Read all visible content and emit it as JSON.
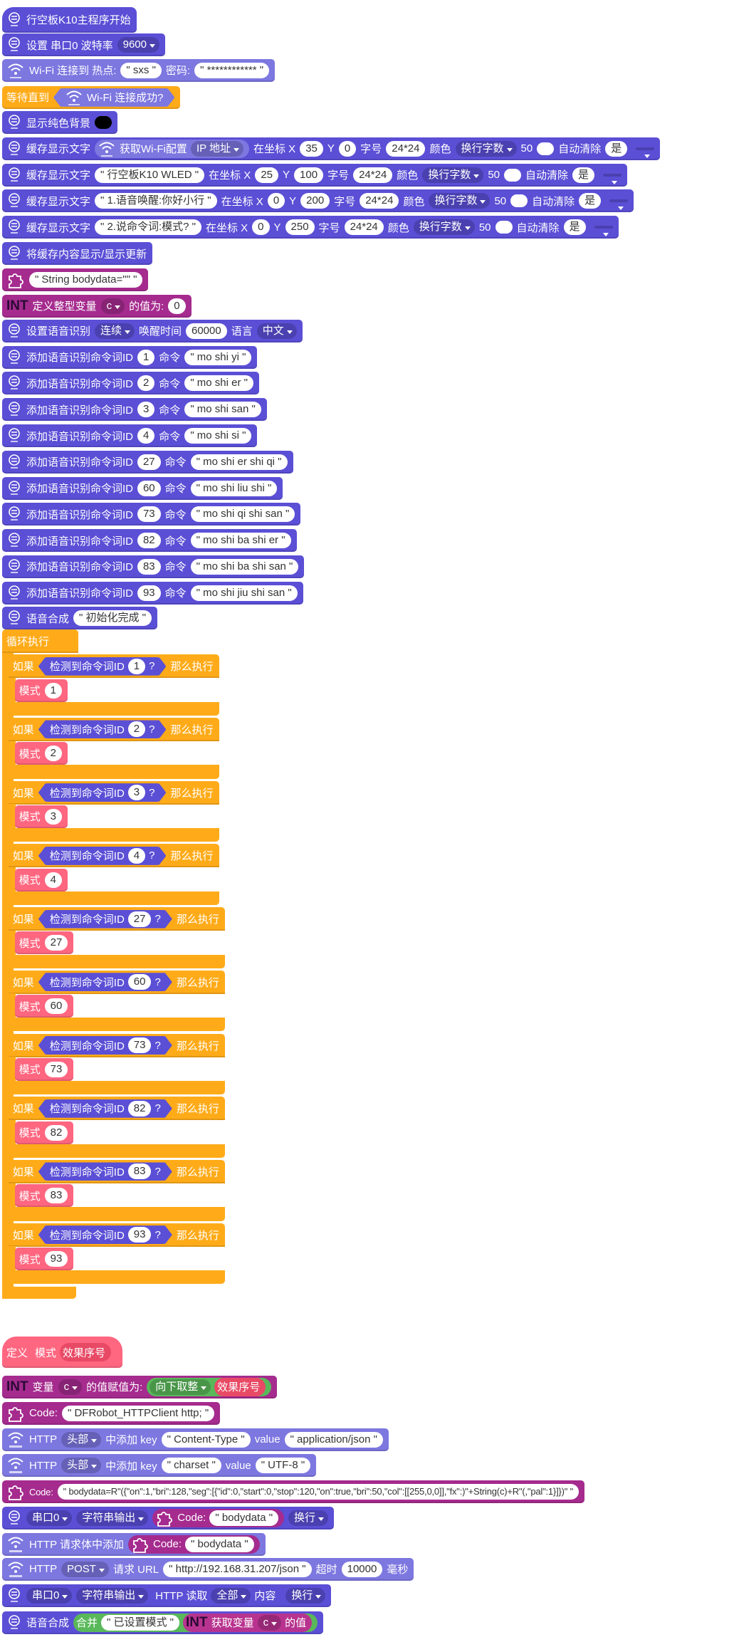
{
  "blocks": [
    {
      "parts": [
        "行空板K10主程序开始"
      ]
    },
    {
      "parts": [
        "设置 串口0 波特率",
        "9600"
      ]
    },
    {
      "parts": [
        "Wi-Fi 连接到 热点:",
        "\" sxs \"",
        "密码:",
        "\" ************ \""
      ]
    },
    {
      "parts": [
        "等待直到",
        "Wi-Fi 连接成功?"
      ]
    },
    {
      "parts": [
        "显示纯色背景"
      ]
    },
    {
      "parts": [
        "缓存显示文字",
        "获取Wi-Fi配置",
        "IP 地址",
        "在坐标 X",
        35,
        "Y",
        0,
        "字号",
        "24*24",
        "颜色",
        "换行字数",
        50,
        "自动清除",
        "是"
      ]
    },
    {
      "parts": [
        "缓存显示文字",
        "\" 行空板K10 WLED \"",
        "在坐标 X",
        25,
        "Y",
        100,
        "字号",
        "24*24",
        "颜色",
        "换行字数",
        50,
        "自动清除",
        "是"
      ]
    },
    {
      "parts": [
        "缓存显示文字",
        "\" 1.语音唤醒:你好小行 \"",
        "在坐标 X",
        0,
        "Y",
        200,
        "字号",
        "24*24",
        "颜色",
        "换行字数",
        50,
        "自动清除",
        "是"
      ]
    },
    {
      "parts": [
        "缓存显示文字",
        "\" 2.说命令词:模式? \"",
        "在坐标 X",
        0,
        "Y",
        250,
        "字号",
        "24*24",
        "颜色",
        "换行字数",
        50,
        "自动清除",
        "是"
      ]
    },
    {
      "parts": [
        "将缓存内容显示/显示更新"
      ]
    },
    {
      "parts": [
        "\" String bodydata=\"\" \""
      ]
    },
    {
      "parts": [
        "INT",
        "定义整型变量",
        "c",
        "的值为:",
        0
      ]
    },
    {
      "parts": [
        "设置语音识别",
        "连续",
        "唤醒时间",
        60000,
        "语言",
        "中文"
      ]
    },
    {
      "parts": [
        "添加语音识别命令词ID",
        1,
        "命令",
        "\" mo shi yi \""
      ]
    },
    {
      "parts": [
        "添加语音识别命令词ID",
        2,
        "命令",
        "\" mo shi er \""
      ]
    },
    {
      "parts": [
        "添加语音识别命令词ID",
        3,
        "命令",
        "\" mo shi san \""
      ]
    },
    {
      "parts": [
        "添加语音识别命令词ID",
        4,
        "命令",
        "\" mo shi si \""
      ]
    },
    {
      "parts": [
        "添加语音识别命令词ID",
        27,
        "命令",
        "\" mo shi er shi qi \""
      ]
    },
    {
      "parts": [
        "添加语音识别命令词ID",
        60,
        "命令",
        "\" mo shi liu shi \""
      ]
    },
    {
      "parts": [
        "添加语音识别命令词ID",
        73,
        "命令",
        "\" mo shi qi shi san \""
      ]
    },
    {
      "parts": [
        "添加语音识别命令词ID",
        82,
        "命令",
        "\" mo shi ba shi er \""
      ]
    },
    {
      "parts": [
        "添加语音识别命令词ID",
        83,
        "命令",
        "\" mo shi ba shi san \""
      ]
    },
    {
      "parts": [
        "添加语音识别命令词ID",
        93,
        "命令",
        "\" mo shi jiu shi san \""
      ]
    },
    {
      "parts": [
        "语音合成",
        "\" 初始化完成 \""
      ]
    }
  ],
  "loop": {
    "label": "循环执行",
    "branches": [
      {
        "if": [
          "如果",
          "检测到命令词ID",
          1,
          "?",
          "那么执行"
        ],
        "do": [
          "模式",
          1
        ]
      },
      {
        "if": [
          "如果",
          "检测到命令词ID",
          2,
          "?",
          "那么执行"
        ],
        "do": [
          "模式",
          2
        ]
      },
      {
        "if": [
          "如果",
          "检测到命令词ID",
          3,
          "?",
          "那么执行"
        ],
        "do": [
          "模式",
          3
        ]
      },
      {
        "if": [
          "如果",
          "检测到命令词ID",
          4,
          "?",
          "那么执行"
        ],
        "do": [
          "模式",
          4
        ]
      },
      {
        "if": [
          "如果",
          "检测到命令词ID",
          27,
          "?",
          "那么执行"
        ],
        "do": [
          "模式",
          27
        ]
      },
      {
        "if": [
          "如果",
          "检测到命令词ID",
          60,
          "?",
          "那么执行"
        ],
        "do": [
          "模式",
          60
        ]
      },
      {
        "if": [
          "如果",
          "检测到命令词ID",
          73,
          "?",
          "那么执行"
        ],
        "do": [
          "模式",
          73
        ]
      },
      {
        "if": [
          "如果",
          "检测到命令词ID",
          82,
          "?",
          "那么执行"
        ],
        "do": [
          "模式",
          82
        ]
      },
      {
        "if": [
          "如果",
          "检测到命令词ID",
          83,
          "?",
          "那么执行"
        ],
        "do": [
          "模式",
          83
        ]
      },
      {
        "if": [
          "如果",
          "检测到命令词ID",
          93,
          "?",
          "那么执行"
        ],
        "do": [
          "模式",
          93
        ]
      }
    ]
  },
  "definition": {
    "parts": [
      "定义",
      "模式",
      "效果序号"
    ],
    "blocks": [
      {
        "parts": [
          "INT",
          "变量",
          "c",
          "的值赋值为:",
          "向下取整",
          "效果序号"
        ]
      },
      {
        "parts": [
          "Code:",
          "\" DFRobot_HTTPClient http; \""
        ]
      },
      {
        "parts": [
          "HTTP",
          "头部",
          "中添加 key",
          "\" Content-Type \"",
          "value",
          "\" application/json \""
        ]
      },
      {
        "parts": [
          "HTTP",
          "头部",
          "中添加 key",
          "\" charset \"",
          "value",
          "\" UTF-8 \""
        ]
      },
      {
        "parts": [
          "Code:",
          "\" bodydata=R\"({\"on\":1,\"bri\":128,\"seg\":[{\"id\":0,\"start\":0,\"stop\":120,\"on\":true,\"bri\":50,\"col\":[[255,0,0]],\"fx\":)\"+String(c)+R\"(,\"pal\":1}]})\" \""
        ]
      },
      {
        "parts": [
          "串口0",
          "字符串输出",
          "Code:",
          "\" bodydata \"",
          "换行"
        ]
      },
      {
        "parts": [
          "HTTP 请求体中添加",
          "Code:",
          "\" bodydata \""
        ]
      },
      {
        "parts": [
          "HTTP",
          "POST",
          "请求 URL",
          "\" http://192.168.31.207/json \"",
          "超时",
          10000,
          "毫秒"
        ]
      },
      {
        "parts": [
          "串口0",
          "字符串输出",
          "HTTP 读取",
          "全部",
          "内容",
          "换行"
        ]
      },
      {
        "parts": [
          "语音合成",
          "合并",
          "\" 已设置模式 \"",
          "INT",
          "获取变量",
          "c",
          "的值"
        ]
      }
    ]
  }
}
